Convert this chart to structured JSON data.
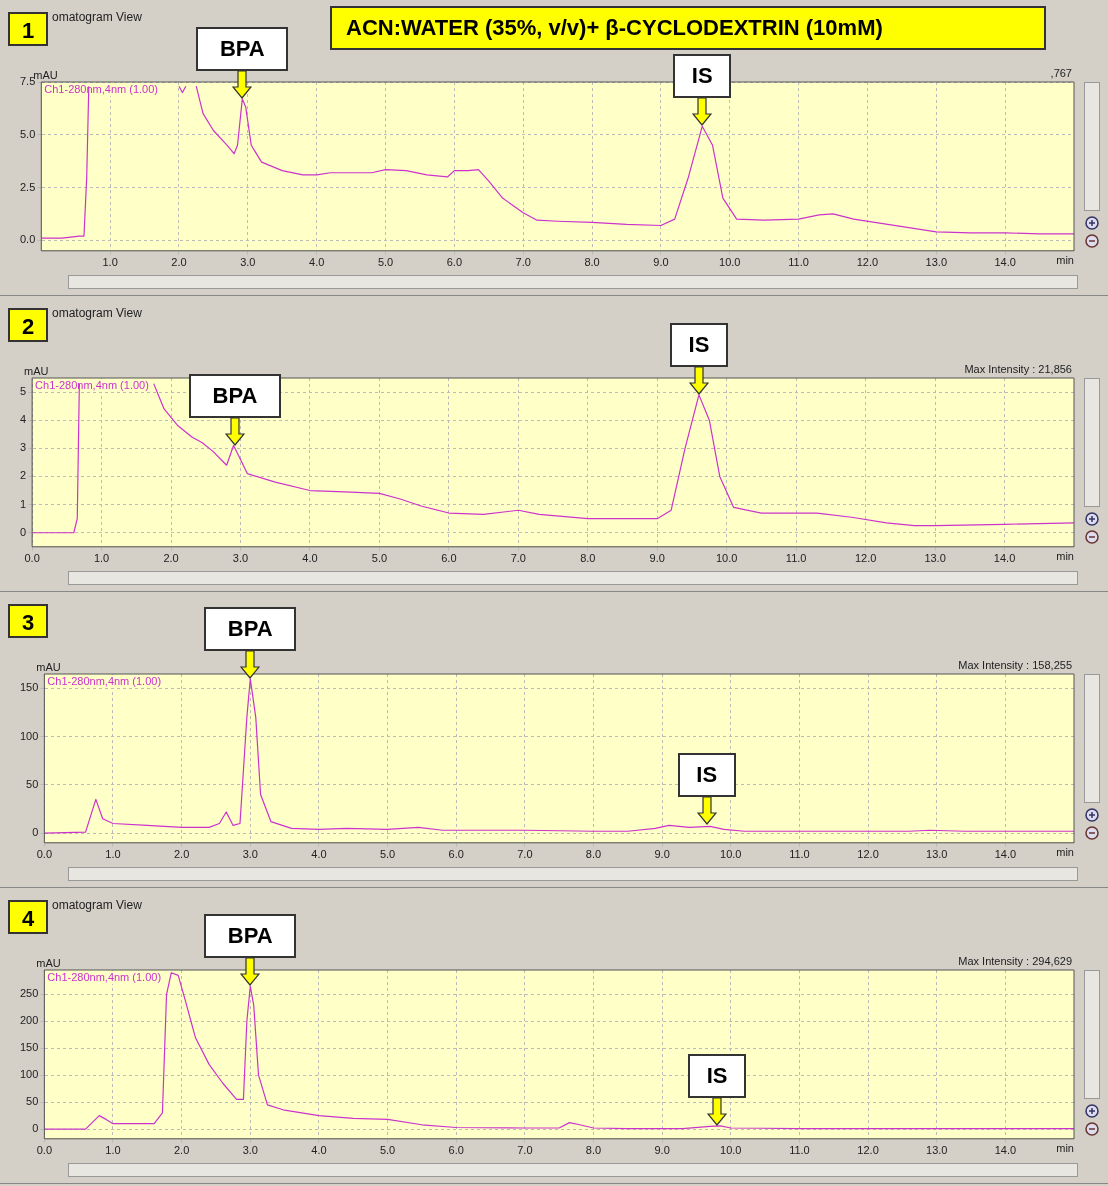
{
  "chart_data": [
    {
      "type": "line",
      "title": "ACN:WATER (35%, v/v)+ β-CYCLODEXTRIN (10mM)",
      "ylabel": "mAU",
      "xlabel": "min",
      "grid": true,
      "legend": false,
      "marker": "none",
      "line_style": "solid",
      "annotations": [
        "1",
        "omatogram View",
        ",767",
        {
          "text": "BPA",
          "x": 2.92,
          "y": 6.7
        },
        {
          "text": "IS",
          "x": 9.6,
          "y": 5.4
        }
      ],
      "xlim": [
        0,
        15
      ],
      "xticks": [
        {
          "value": 1,
          "label": "1.0"
        },
        {
          "value": 2,
          "label": "2.0"
        },
        {
          "value": 3,
          "label": "3.0"
        },
        {
          "value": 4,
          "label": "4.0"
        },
        {
          "value": 5,
          "label": "5.0"
        },
        {
          "value": 6,
          "label": "6.0"
        },
        {
          "value": 7,
          "label": "7.0"
        },
        {
          "value": 8,
          "label": "8.0"
        },
        {
          "value": 9,
          "label": "9.0"
        },
        {
          "value": 10,
          "label": "10.0"
        },
        {
          "value": 11,
          "label": "11.0"
        },
        {
          "value": 12,
          "label": "12.0"
        },
        {
          "value": 13,
          "label": "13.0"
        },
        {
          "value": 14,
          "label": "14.0"
        }
      ],
      "ylim": [
        -0.5,
        7.5
      ],
      "yticks": [
        {
          "value": 0,
          "label": "0.0"
        },
        {
          "value": 2.5,
          "label": "2.5"
        },
        {
          "value": 5,
          "label": "5.0"
        },
        {
          "value": 7.5,
          "label": "7.5"
        }
      ],
      "series": [
        {
          "name": "Ch1-280nm,4nm (1.00)",
          "color": "#cc33cc",
          "x": [
            0,
            0.3,
            0.55,
            0.62,
            0.66,
            0.69,
            1.4,
            2.0,
            2.05,
            2.1,
            2.17,
            2.25,
            2.35,
            2.5,
            2.7,
            2.8,
            2.85,
            2.92,
            2.97,
            3.05,
            3.2,
            3.5,
            3.8,
            4.0,
            4.2,
            4.8,
            5.0,
            5.3,
            5.6,
            5.9,
            6.0,
            6.2,
            6.35,
            6.5,
            6.7,
            7.0,
            7.2,
            7.5,
            8.0,
            8.5,
            9.0,
            9.2,
            9.4,
            9.6,
            9.75,
            9.9,
            10.1,
            10.5,
            11.0,
            11.3,
            11.5,
            11.8,
            12.2,
            12.6,
            13.0,
            13.5,
            14.0,
            14.5,
            15.0
          ],
          "values": [
            0.1,
            0.1,
            0.2,
            0.2,
            3.0,
            7.3,
            null,
            7.3,
            7.0,
            7.3,
            null,
            7.3,
            6.0,
            5.2,
            4.5,
            4.1,
            4.5,
            6.7,
            6.3,
            4.5,
            3.7,
            3.3,
            3.1,
            3.1,
            3.2,
            3.2,
            3.35,
            3.3,
            3.1,
            3.0,
            3.3,
            3.3,
            3.35,
            2.8,
            2.0,
            1.3,
            0.95,
            0.9,
            0.85,
            0.75,
            0.7,
            1.0,
            3.0,
            5.4,
            4.5,
            2.0,
            1.0,
            0.95,
            1.0,
            1.2,
            1.25,
            1.0,
            0.8,
            0.6,
            0.4,
            0.35,
            0.35,
            0.3,
            0.3
          ]
        }
      ]
    },
    {
      "type": "line",
      "ylabel": "mAU",
      "xlabel": "min",
      "grid": true,
      "legend": false,
      "marker": "none",
      "line_style": "solid",
      "annotations": [
        "2",
        "omatogram View",
        "Max Intensity :  21,856",
        {
          "text": "BPA",
          "x": 2.92,
          "y": 3.1
        },
        {
          "text": "IS",
          "x": 9.6,
          "y": 4.9
        }
      ],
      "xlim": [
        0,
        15
      ],
      "xticks": [
        {
          "value": 0,
          "label": "0.0"
        },
        {
          "value": 1,
          "label": "1.0"
        },
        {
          "value": 2,
          "label": "2.0"
        },
        {
          "value": 3,
          "label": "3.0"
        },
        {
          "value": 4,
          "label": "4.0"
        },
        {
          "value": 5,
          "label": "5.0"
        },
        {
          "value": 6,
          "label": "6.0"
        },
        {
          "value": 7,
          "label": "7.0"
        },
        {
          "value": 8,
          "label": "8.0"
        },
        {
          "value": 9,
          "label": "9.0"
        },
        {
          "value": 10,
          "label": "10.0"
        },
        {
          "value": 11,
          "label": "11.0"
        },
        {
          "value": 12,
          "label": "12.0"
        },
        {
          "value": 13,
          "label": "13.0"
        },
        {
          "value": 14,
          "label": "14.0"
        }
      ],
      "ylim": [
        -0.5,
        5.5
      ],
      "yticks": [
        0,
        1,
        2,
        3,
        4,
        5
      ],
      "series": [
        {
          "name": "Ch1-280nm,4nm (1.00)",
          "color": "#cc33cc",
          "x": [
            0,
            0.6,
            0.65,
            0.68,
            1.2,
            1.75,
            1.9,
            2.1,
            2.3,
            2.45,
            2.6,
            2.8,
            2.9,
            3.0,
            3.1,
            3.5,
            4.0,
            4.5,
            5.0,
            5.3,
            5.6,
            6.0,
            6.5,
            7.0,
            7.3,
            8.0,
            8.5,
            9.0,
            9.2,
            9.4,
            9.6,
            9.75,
            9.9,
            10.1,
            10.5,
            11.0,
            11.3,
            11.8,
            12.3,
            12.7,
            13.0,
            14.0,
            15.0
          ],
          "values": [
            0,
            0,
            0.5,
            5.3,
            null,
            5.3,
            4.4,
            3.8,
            3.4,
            3.2,
            2.9,
            2.4,
            3.1,
            2.6,
            2.1,
            1.8,
            1.5,
            1.45,
            1.4,
            1.2,
            0.95,
            0.7,
            0.65,
            0.8,
            0.65,
            0.5,
            0.5,
            0.5,
            0.8,
            3.0,
            4.9,
            4.0,
            2.0,
            0.9,
            0.7,
            0.7,
            0.7,
            0.55,
            0.35,
            0.25,
            0.25,
            0.3,
            0.35
          ]
        }
      ]
    },
    {
      "type": "line",
      "ylabel": "mAU",
      "xlabel": "min",
      "grid": true,
      "legend": false,
      "marker": "none",
      "line_style": "solid",
      "annotations": [
        "3",
        "Max Intensity : 158,255",
        {
          "text": "BPA",
          "x": 3.0,
          "y": 160
        },
        {
          "text": "IS",
          "x": 9.65,
          "y": 8
        }
      ],
      "xlim": [
        0,
        15
      ],
      "xticks": [
        {
          "value": 0,
          "label": "0.0"
        },
        {
          "value": 1,
          "label": "1.0"
        },
        {
          "value": 2,
          "label": "2.0"
        },
        {
          "value": 3,
          "label": "3.0"
        },
        {
          "value": 4,
          "label": "4.0"
        },
        {
          "value": 5,
          "label": "5.0"
        },
        {
          "value": 6,
          "label": "6.0"
        },
        {
          "value": 7,
          "label": "7.0"
        },
        {
          "value": 8,
          "label": "8.0"
        },
        {
          "value": 9,
          "label": "9.0"
        },
        {
          "value": 10,
          "label": "10.0"
        },
        {
          "value": 11,
          "label": "11.0"
        },
        {
          "value": 12,
          "label": "12.0"
        },
        {
          "value": 13,
          "label": "13.0"
        },
        {
          "value": 14,
          "label": "14.0"
        }
      ],
      "ylim": [
        -10,
        165
      ],
      "yticks": [
        0,
        50,
        100,
        150
      ],
      "series": [
        {
          "name": "Ch1-280nm,4nm (1.00)",
          "color": "#cc33cc",
          "x": [
            0,
            0.6,
            0.75,
            0.85,
            1.0,
            1.5,
            2.0,
            2.4,
            2.55,
            2.65,
            2.75,
            2.85,
            2.95,
            3.0,
            3.08,
            3.15,
            3.3,
            3.6,
            4.0,
            4.4,
            5.0,
            5.45,
            5.8,
            6.5,
            7.0,
            8.0,
            8.5,
            8.9,
            9.1,
            9.4,
            9.7,
            9.9,
            10.2,
            11.0,
            12.0,
            12.6,
            12.9,
            13.4,
            14.0,
            15.0
          ],
          "values": [
            0,
            1,
            35,
            15,
            10,
            8,
            6,
            6,
            10,
            22,
            8,
            10,
            120,
            160,
            120,
            40,
            12,
            5,
            4,
            5,
            4,
            6,
            3,
            3,
            3,
            2,
            2,
            5,
            8,
            6,
            7,
            4,
            2,
            2,
            2,
            2,
            3,
            2,
            2,
            2
          ]
        }
      ]
    },
    {
      "type": "line",
      "ylabel": "mAU",
      "xlabel": "min",
      "grid": true,
      "legend": false,
      "marker": "none",
      "line_style": "solid",
      "annotations": [
        "4",
        "omatogram View",
        "Max Intensity : 294,629",
        {
          "text": "BPA",
          "x": 3.0,
          "y": 265
        },
        {
          "text": "IS",
          "x": 9.8,
          "y": 5
        }
      ],
      "xlim": [
        0,
        15
      ],
      "xticks": [
        {
          "value": 0,
          "label": "0.0"
        },
        {
          "value": 1,
          "label": "1.0"
        },
        {
          "value": 2,
          "label": "2.0"
        },
        {
          "value": 3,
          "label": "3.0"
        },
        {
          "value": 4,
          "label": "4.0"
        },
        {
          "value": 5,
          "label": "5.0"
        },
        {
          "value": 6,
          "label": "6.0"
        },
        {
          "value": 7,
          "label": "7.0"
        },
        {
          "value": 8,
          "label": "8.0"
        },
        {
          "value": 9,
          "label": "9.0"
        },
        {
          "value": 10,
          "label": "10.0"
        },
        {
          "value": 11,
          "label": "11.0"
        },
        {
          "value": 12,
          "label": "12.0"
        },
        {
          "value": 13,
          "label": "13.0"
        },
        {
          "value": 14,
          "label": "14.0"
        }
      ],
      "ylim": [
        -18,
        295
      ],
      "yticks": [
        0,
        50,
        100,
        150,
        200,
        250
      ],
      "series": [
        {
          "name": "Ch1-280nm,4nm (1.00)",
          "color": "#cc33cc",
          "x": [
            0,
            0.6,
            0.8,
            0.9,
            1.0,
            1.6,
            1.72,
            1.78,
            1.85,
            1.95,
            2.05,
            2.2,
            2.4,
            2.6,
            2.8,
            2.9,
            2.95,
            3.0,
            3.05,
            3.12,
            3.25,
            3.5,
            4.0,
            4.5,
            5.0,
            5.5,
            6.0,
            7.0,
            7.5,
            7.65,
            7.8,
            8.0,
            8.5,
            9.3,
            9.7,
            9.85,
            10.0,
            11.0,
            12.0,
            13.0,
            15.0
          ],
          "values": [
            0,
            0,
            25,
            18,
            10,
            10,
            30,
            250,
            290,
            285,
            240,
            170,
            120,
            85,
            55,
            55,
            200,
            265,
            230,
            100,
            45,
            35,
            25,
            20,
            18,
            8,
            3,
            2,
            2,
            12,
            8,
            2,
            1,
            1,
            5,
            6,
            2,
            1,
            1,
            1,
            1
          ]
        }
      ]
    }
  ]
}
